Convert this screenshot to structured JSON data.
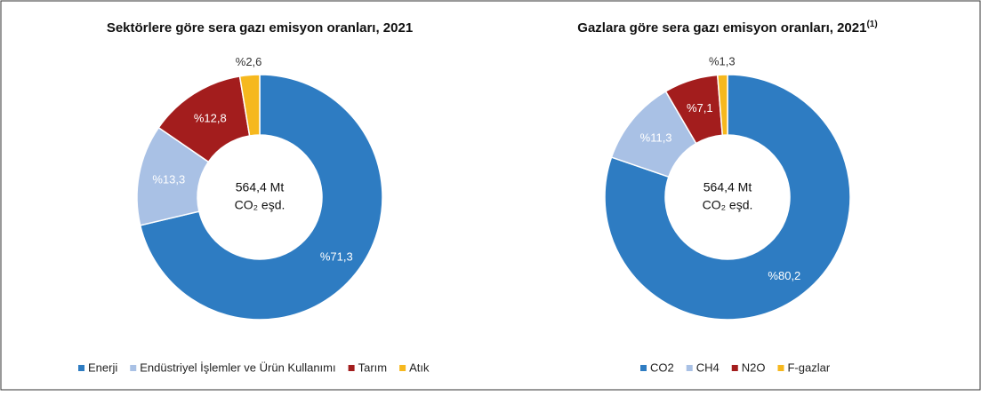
{
  "chart_data": [
    {
      "type": "donut",
      "title": "Sektörlere göre sera gazı emisyon oranları, 2021",
      "center_label": [
        "564,4 Mt",
        "CO₂ eşd."
      ],
      "categories": [
        "Enerji",
        "Endüstriyel İşlemler ve Ürün Kullanımı",
        "Tarım",
        "Atık"
      ],
      "values": [
        71.3,
        13.3,
        12.8,
        2.6
      ],
      "value_labels": [
        "%71,3",
        "%13,3",
        "%12,8",
        "%2,6"
      ],
      "colors": [
        "#2e7cc2",
        "#a9c1e5",
        "#a31d1d",
        "#f6b81e"
      ],
      "legend": "bottom"
    },
    {
      "type": "donut",
      "title": "Gazlara göre sera gazı emisyon oranları, 2021",
      "title_note": "(1)",
      "center_label": [
        "564,4 Mt",
        "CO₂ eşd."
      ],
      "categories": [
        "CO2",
        "CH4",
        "N2O",
        "F-gazlar"
      ],
      "values": [
        80.2,
        11.3,
        7.1,
        1.3
      ],
      "value_labels": [
        "%80,2",
        "%11,3",
        "%7,1",
        "%1,3"
      ],
      "colors": [
        "#2e7cc2",
        "#a9c1e5",
        "#a31d1d",
        "#f6b81e"
      ],
      "legend": "bottom"
    }
  ]
}
